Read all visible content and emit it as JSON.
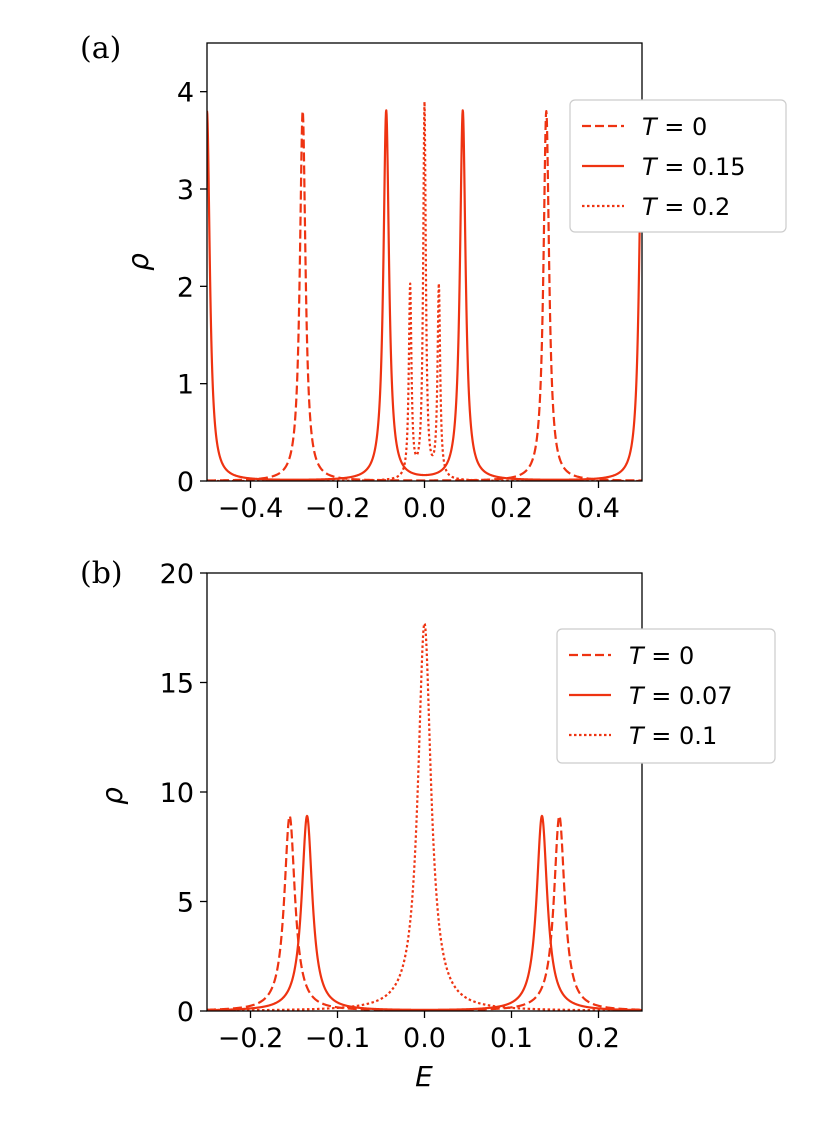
{
  "chart_data": [
    {
      "type": "line",
      "panel_label": "(a)",
      "xlabel": "",
      "ylabel": "ρ",
      "xlim": [
        -0.5,
        0.5
      ],
      "ylim": [
        0,
        4.5
      ],
      "xticks": [
        -0.4,
        -0.2,
        0.0,
        0.2,
        0.4
      ],
      "xtick_labels": [
        "−0.4",
        "−0.2",
        "0.0",
        "0.2",
        "0.4"
      ],
      "yticks": [
        0,
        1,
        2,
        3,
        4
      ],
      "ytick_labels": [
        "0",
        "1",
        "2",
        "3",
        "4"
      ],
      "grid": false,
      "legend_position": "top-right",
      "series": [
        {
          "name": "T = 0",
          "legend_T": "0",
          "line_style": "dashed",
          "color": "#ee3311",
          "peaks": [
            -0.28,
            0.28
          ],
          "peak_heights": [
            3.8,
            3.8
          ],
          "width": 0.0078,
          "baseline": 0.0
        },
        {
          "name": "T = 0.15",
          "legend_T": "0.15",
          "line_style": "solid",
          "color": "#ee3311",
          "peaks": [
            -0.5,
            -0.088,
            0.088,
            0.5
          ],
          "peak_heights": [
            3.8,
            3.8,
            3.8,
            3.8
          ],
          "width": 0.0078,
          "baseline": 0.0
        },
        {
          "name": "T = 0.2",
          "legend_T": "0.2",
          "line_style": "dotted",
          "color": "#ee3311",
          "peaks": [
            -0.033,
            0.0,
            0.033
          ],
          "peak_heights": [
            1.98,
            3.85,
            1.98
          ],
          "width": 0.0036,
          "baseline": 0.0
        }
      ]
    },
    {
      "type": "line",
      "panel_label": "(b)",
      "xlabel": "E",
      "ylabel": "ρ",
      "xlim": [
        -0.25,
        0.25
      ],
      "ylim": [
        0,
        20
      ],
      "xticks": [
        -0.2,
        -0.1,
        0.0,
        0.1,
        0.2
      ],
      "xtick_labels": [
        "−0.2",
        "−0.1",
        "0.0",
        "0.1",
        "0.2"
      ],
      "yticks": [
        0,
        5,
        10,
        15,
        20
      ],
      "ytick_labels": [
        "0",
        "5",
        "10",
        "15",
        "20"
      ],
      "grid": false,
      "legend_position": "top-right",
      "series": [
        {
          "name": "T = 0",
          "legend_T": "0",
          "line_style": "dashed",
          "color": "#ee3311",
          "peaks": [
            -0.155,
            0.155
          ],
          "peak_heights": [
            8.9,
            8.9
          ],
          "width": 0.0074,
          "baseline": 0.0
        },
        {
          "name": "T = 0.07",
          "legend_T": "0.07",
          "line_style": "solid",
          "color": "#ee3311",
          "peaks": [
            -0.135,
            0.135
          ],
          "peak_heights": [
            8.9,
            8.9
          ],
          "width": 0.0074,
          "baseline": 0.0
        },
        {
          "name": "T = 0.1",
          "legend_T": "0.1",
          "line_style": "dotted",
          "color": "#ee3311",
          "peaks": [
            0.0
          ],
          "peak_heights": [
            17.7
          ],
          "width": 0.009,
          "baseline": 0.0
        }
      ]
    }
  ]
}
